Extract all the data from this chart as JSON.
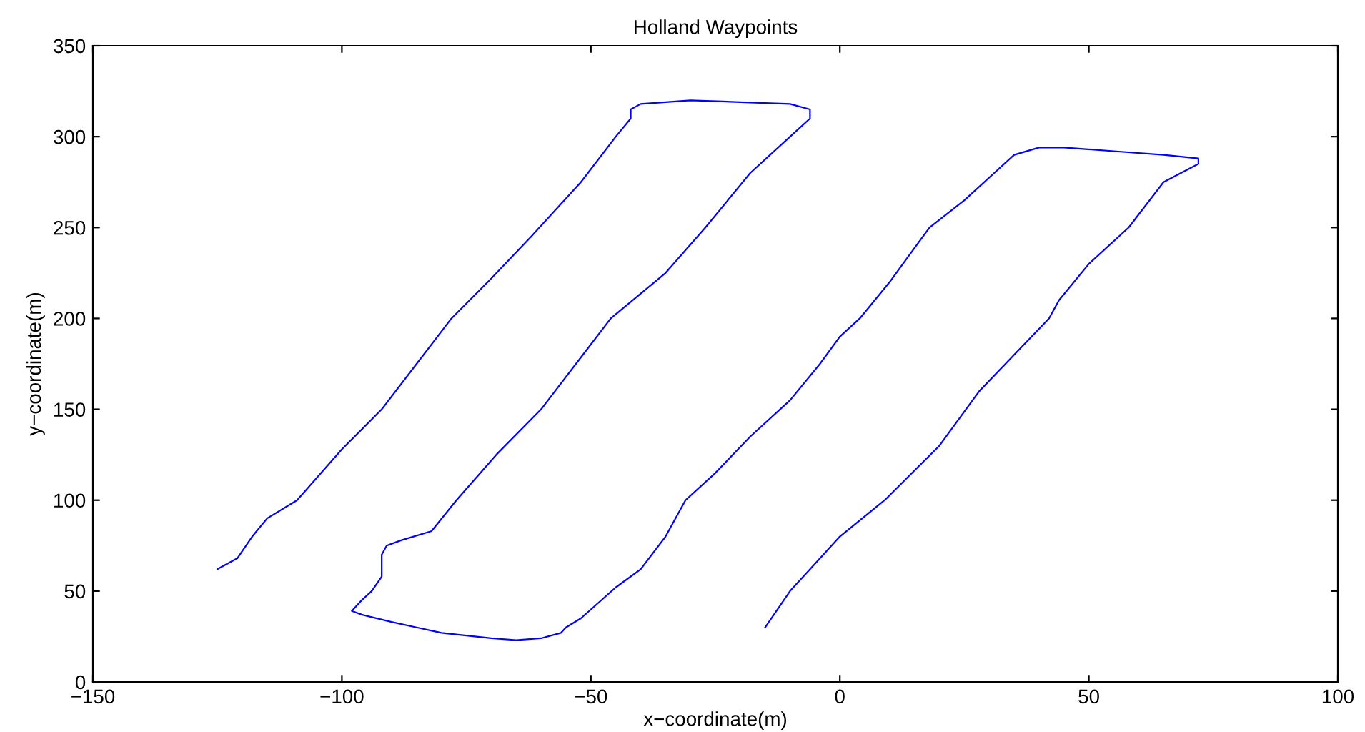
{
  "chart_data": {
    "type": "line",
    "title": "Holland Waypoints",
    "xlabel": "x−coordinate(m)",
    "ylabel": "y−coordinate(m)",
    "xlim": [
      -150,
      100
    ],
    "ylim": [
      0,
      350
    ],
    "xticks": [
      {
        "value": -150,
        "label": "−150"
      },
      {
        "value": -100,
        "label": "−100"
      },
      {
        "value": -50,
        "label": "−50"
      },
      0,
      50,
      100
    ],
    "yticks": [
      0,
      50,
      100,
      150,
      200,
      250,
      300,
      350
    ],
    "grid": false,
    "legend": false,
    "series": [
      {
        "color": "#0000ff",
        "x": [
          -125,
          -121,
          -118,
          -115,
          -109,
          -100,
          -92,
          -85,
          -78,
          -70,
          -62,
          -52,
          -45,
          -42,
          -42,
          -40,
          -30,
          -20,
          -10,
          -6,
          -6,
          -10,
          -18,
          -27,
          -35,
          -46,
          -53,
          -60,
          -69,
          -77,
          -82,
          -88,
          -91,
          -92,
          -92,
          -94,
          -96,
          -98,
          -96,
          -90,
          -85,
          -80,
          -70,
          -65,
          -60,
          -56,
          -55,
          -52,
          -45,
          -40,
          -35,
          -31,
          -25,
          -18,
          -10,
          -4,
          0,
          4,
          10,
          18,
          25,
          31,
          35,
          40,
          45,
          55,
          65,
          72,
          72,
          65,
          58,
          50,
          44,
          42,
          35,
          28,
          20,
          9,
          0,
          -5,
          -10,
          -15
        ],
        "values": [
          62,
          68,
          80,
          90,
          100,
          128,
          150,
          175,
          200,
          222,
          245,
          275,
          300,
          310,
          315,
          318,
          320,
          319,
          318,
          315,
          310,
          300,
          280,
          250,
          225,
          200,
          175,
          150,
          125,
          100,
          83,
          78,
          75,
          70,
          58,
          50,
          45,
          39,
          37,
          33,
          30,
          27,
          24,
          23,
          24,
          27,
          30,
          35,
          52,
          62,
          80,
          100,
          115,
          135,
          155,
          175,
          190,
          200,
          220,
          250,
          265,
          280,
          290,
          294,
          294,
          292,
          290,
          288,
          285,
          275,
          250,
          230,
          210,
          200,
          180,
          160,
          130,
          100,
          80,
          65,
          50,
          30
        ]
      }
    ]
  }
}
